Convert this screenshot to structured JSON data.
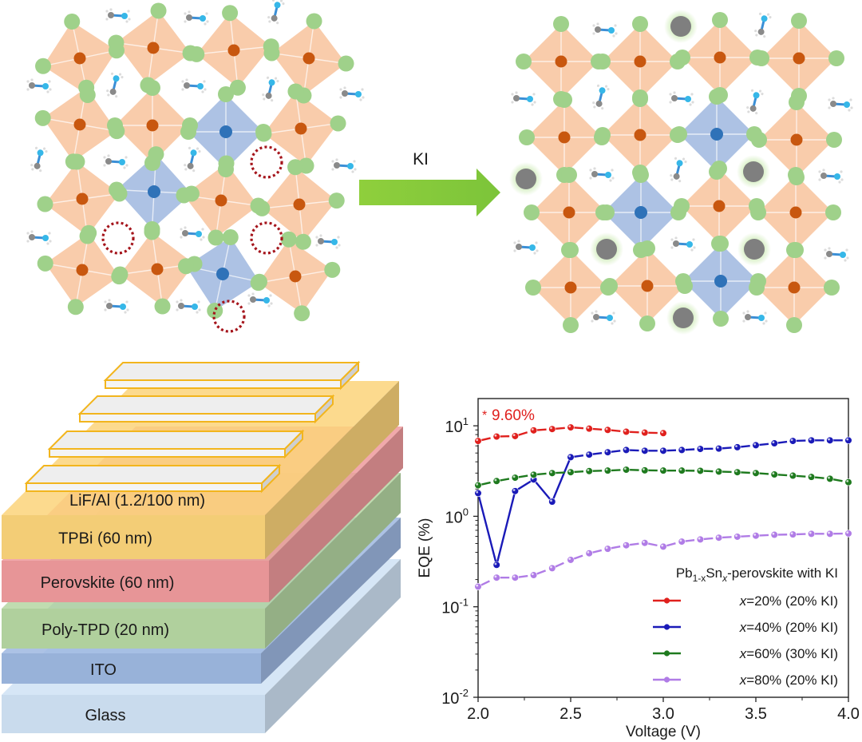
{
  "figure": {
    "panel_a": {
      "arrow_label": "KI",
      "colors": {
        "pb_octahedron": "#f9c9a6",
        "pb_center": "#c8570f",
        "sn_octahedron": "#a9bfe3",
        "sn_center": "#2f72b8",
        "halide": "#9fd18a",
        "vacancy": "#a5151c",
        "potassium": "#7f7f7f",
        "arrow": "#8fcf3c"
      },
      "before": {
        "title": "Pb1-xSnx perovskite lattice before KI (with vacancies)",
        "octahedra": [
          {
            "metal": "Pb"
          },
          {
            "metal": "Pb"
          },
          {
            "metal": "Pb"
          },
          {
            "metal": "Pb"
          },
          {
            "metal": "Pb"
          },
          {
            "metal": "Pb"
          },
          {
            "metal": "Sn"
          },
          {
            "metal": "Pb"
          },
          {
            "metal": "Pb"
          },
          {
            "metal": "Sn"
          },
          {
            "metal": "Pb"
          },
          {
            "metal": "Pb"
          },
          {
            "metal": "Pb"
          },
          {
            "metal": "Pb"
          },
          {
            "metal": "Sn"
          },
          {
            "metal": "Pb"
          }
        ],
        "vacancy_count": 4
      },
      "after": {
        "title": "Lattice after KI passivation",
        "octahedra": [
          {
            "metal": "Pb"
          },
          {
            "metal": "Pb"
          },
          {
            "metal": "Pb"
          },
          {
            "metal": "Pb"
          },
          {
            "metal": "Pb"
          },
          {
            "metal": "Pb"
          },
          {
            "metal": "Sn"
          },
          {
            "metal": "Pb"
          },
          {
            "metal": "Pb"
          },
          {
            "metal": "Sn"
          },
          {
            "metal": "Pb"
          },
          {
            "metal": "Pb"
          },
          {
            "metal": "Pb"
          },
          {
            "metal": "Pb"
          },
          {
            "metal": "Sn"
          },
          {
            "metal": "Pb"
          }
        ],
        "potassium_count": 6
      }
    },
    "panel_b": {
      "layers": [
        {
          "name": "electrode",
          "label": "LiF/Al (1.2/100 nm)",
          "color": "#eeeeee",
          "edge": "#f2b51d"
        },
        {
          "name": "tpbi",
          "label": "TPBi (60 nm)",
          "color": "#fbd37a"
        },
        {
          "name": "perovskite",
          "label": "Perovskite (60 nm)",
          "color": "#ee9a9c"
        },
        {
          "name": "poly-tpd",
          "label": "Poly-TPD (20 nm)",
          "color": "#b5d6a2"
        },
        {
          "name": "ito",
          "label": "ITO",
          "color": "#9db7e0"
        },
        {
          "name": "glass",
          "label": "Glass",
          "color": "#cfe2f4"
        }
      ]
    }
  },
  "chart_data": {
    "type": "line",
    "title": "",
    "xlabel": "Voltage (V)",
    "ylabel": "EQE (%)",
    "xlim": [
      2.0,
      4.0
    ],
    "ylim": [
      0.01,
      25
    ],
    "yscale": "log",
    "xticks": [
      {
        "value": 2.0,
        "label": "2.0"
      },
      {
        "value": 2.5,
        "label": "2.5"
      },
      {
        "value": 3.0,
        "label": "3.0"
      },
      {
        "value": 3.5,
        "label": "3.5"
      },
      {
        "value": 4.0,
        "label": "4.0"
      }
    ],
    "yticks": [
      {
        "value": 10,
        "base": "10",
        "exp": "1"
      },
      {
        "value": 1,
        "base": "10",
        "exp": "0"
      },
      {
        "value": 0.1,
        "base": "10",
        "exp": "-1"
      },
      {
        "value": 0.01,
        "base": "10",
        "exp": "-2"
      }
    ],
    "grid": false,
    "annotation": {
      "marker": "*",
      "text": "9.60%",
      "color": "#e02020"
    },
    "legend": {
      "title_parts": [
        "Pb",
        "1-x",
        "Sn",
        "x",
        "-perovskite with KI"
      ],
      "placement": "bottom-right"
    },
    "series": [
      {
        "name": "x=20% (20% KI)",
        "var": "x",
        "rest": "=20% (20% KI)",
        "color": "#e0201d",
        "dashed": true,
        "x": [
          2.0,
          2.1,
          2.2,
          2.3,
          2.4,
          2.5,
          2.6,
          2.7,
          2.8,
          2.9,
          3.0
        ],
        "y": [
          6.8,
          7.6,
          7.7,
          8.9,
          9.2,
          9.6,
          9.3,
          9.0,
          8.6,
          8.4,
          8.3
        ]
      },
      {
        "name": "x=40% (20% KI)",
        "var": "x",
        "rest": "=40% (20% KI)",
        "color": "#1a1ab8",
        "dashed": false,
        "dashed_from": 2.5,
        "x": [
          2.0,
          2.1,
          2.2,
          2.3,
          2.4,
          2.5,
          2.6,
          2.7,
          2.8,
          2.9,
          3.0,
          3.1,
          3.2,
          3.3,
          3.4,
          3.5,
          3.6,
          3.7,
          3.8,
          3.9,
          4.0
        ],
        "y": [
          1.8,
          0.29,
          1.9,
          2.55,
          1.45,
          4.5,
          4.8,
          5.1,
          5.4,
          5.3,
          5.3,
          5.4,
          5.55,
          5.6,
          5.8,
          6.1,
          6.4,
          6.8,
          6.9,
          6.9,
          6.9
        ]
      },
      {
        "name": "x=60% (30% KI)",
        "var": "x",
        "rest": "=60% (30% KI)",
        "color": "#1e7a1e",
        "dashed": true,
        "x": [
          2.0,
          2.1,
          2.2,
          2.3,
          2.4,
          2.5,
          2.6,
          2.7,
          2.8,
          2.9,
          3.0,
          3.1,
          3.2,
          3.3,
          3.4,
          3.5,
          3.6,
          3.7,
          3.8,
          3.9,
          4.0
        ],
        "y": [
          2.2,
          2.45,
          2.67,
          2.88,
          3.0,
          3.07,
          3.16,
          3.2,
          3.27,
          3.22,
          3.2,
          3.2,
          3.18,
          3.12,
          3.07,
          3.0,
          2.9,
          2.81,
          2.72,
          2.6,
          2.38
        ]
      },
      {
        "name": "x=80% (20% KI)",
        "var": "x",
        "rest": "=80% (20% KI)",
        "color": "#b07ce6",
        "dashed": true,
        "x": [
          2.0,
          2.1,
          2.2,
          2.3,
          2.4,
          2.5,
          2.6,
          2.7,
          2.8,
          2.9,
          3.0,
          3.1,
          3.2,
          3.3,
          3.4,
          3.5,
          3.6,
          3.7,
          3.8,
          3.9,
          4.0
        ],
        "y": [
          0.167,
          0.21,
          0.21,
          0.224,
          0.267,
          0.33,
          0.39,
          0.437,
          0.478,
          0.508,
          0.462,
          0.525,
          0.555,
          0.58,
          0.595,
          0.61,
          0.625,
          0.63,
          0.64,
          0.64,
          0.645
        ]
      }
    ]
  }
}
